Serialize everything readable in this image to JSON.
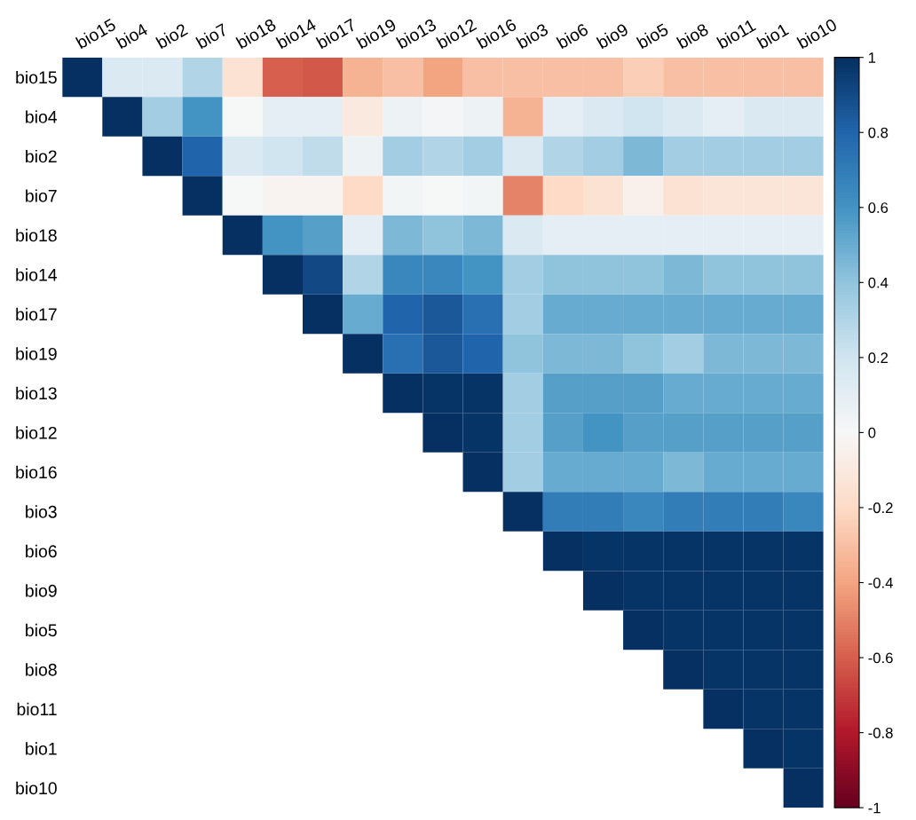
{
  "chart_data": {
    "type": "heatmap",
    "categories": [
      "bio15",
      "bio4",
      "bio2",
      "bio7",
      "bio18",
      "bio14",
      "bio17",
      "bio19",
      "bio13",
      "bio12",
      "bio16",
      "bio3",
      "bio6",
      "bio9",
      "bio5",
      "bio8",
      "bio11",
      "bio1",
      "bio10"
    ],
    "y_categories": [
      "bio15",
      "bio4",
      "bio2",
      "bio7",
      "bio18",
      "bio14",
      "bio17",
      "bio19",
      "bio13",
      "bio12",
      "bio16",
      "bio3",
      "bio6",
      "bio9",
      "bio5",
      "bio8",
      "bio11",
      "bio1",
      "bio10"
    ],
    "cells": [
      [
        1,
        0.15,
        0.15,
        0.3,
        -0.15,
        -0.6,
        -0.62,
        -0.35,
        -0.3,
        -0.4,
        -0.3,
        -0.3,
        -0.3,
        -0.3,
        -0.25,
        -0.3,
        -0.3,
        -0.3,
        -0.3
      ],
      [
        null,
        1,
        0.35,
        0.6,
        0.0,
        0.1,
        0.1,
        -0.1,
        0.05,
        0.02,
        0.05,
        -0.35,
        0.1,
        0.15,
        0.2,
        0.15,
        0.1,
        0.15,
        0.15
      ],
      [
        null,
        null,
        1,
        0.8,
        0.15,
        0.2,
        0.25,
        0.05,
        0.35,
        0.3,
        0.35,
        0.15,
        0.3,
        0.35,
        0.45,
        0.35,
        0.35,
        0.35,
        0.35
      ],
      [
        null,
        null,
        null,
        1,
        0.0,
        -0.03,
        -0.03,
        -0.2,
        0.03,
        0.0,
        0.03,
        -0.5,
        -0.2,
        -0.15,
        -0.05,
        -0.15,
        -0.13,
        -0.13,
        -0.13
      ],
      [
        null,
        null,
        null,
        null,
        1,
        0.6,
        0.55,
        0.1,
        0.45,
        0.4,
        0.45,
        0.15,
        0.1,
        0.1,
        0.1,
        0.1,
        0.1,
        0.1,
        0.1
      ],
      [
        null,
        null,
        null,
        null,
        null,
        1,
        0.9,
        0.3,
        0.65,
        0.65,
        0.6,
        0.35,
        0.4,
        0.4,
        0.4,
        0.45,
        0.4,
        0.4,
        0.4
      ],
      [
        null,
        null,
        null,
        null,
        null,
        null,
        1,
        0.5,
        0.8,
        0.85,
        0.75,
        0.35,
        0.5,
        0.5,
        0.5,
        0.5,
        0.5,
        0.5,
        0.5
      ],
      [
        null,
        null,
        null,
        null,
        null,
        null,
        null,
        1,
        0.75,
        0.85,
        0.8,
        0.4,
        0.45,
        0.45,
        0.4,
        0.35,
        0.45,
        0.45,
        0.45
      ],
      [
        null,
        null,
        null,
        null,
        null,
        null,
        null,
        null,
        1,
        0.98,
        0.98,
        0.35,
        0.55,
        0.55,
        0.55,
        0.5,
        0.5,
        0.5,
        0.5
      ],
      [
        null,
        null,
        null,
        null,
        null,
        null,
        null,
        null,
        null,
        1,
        0.98,
        0.35,
        0.55,
        0.6,
        0.55,
        0.55,
        0.55,
        0.55,
        0.55
      ],
      [
        null,
        null,
        null,
        null,
        null,
        null,
        null,
        null,
        null,
        null,
        1,
        0.35,
        0.5,
        0.5,
        0.5,
        0.45,
        0.5,
        0.5,
        0.5
      ],
      [
        null,
        null,
        null,
        null,
        null,
        null,
        null,
        null,
        null,
        null,
        null,
        1,
        0.7,
        0.7,
        0.65,
        0.7,
        0.7,
        0.7,
        0.65
      ],
      [
        null,
        null,
        null,
        null,
        null,
        null,
        null,
        null,
        null,
        null,
        null,
        null,
        1,
        0.98,
        0.98,
        0.98,
        0.98,
        0.98,
        0.98
      ],
      [
        null,
        null,
        null,
        null,
        null,
        null,
        null,
        null,
        null,
        null,
        null,
        null,
        null,
        1,
        0.98,
        0.98,
        0.98,
        0.98,
        0.98
      ],
      [
        null,
        null,
        null,
        null,
        null,
        null,
        null,
        null,
        null,
        null,
        null,
        null,
        null,
        null,
        1,
        0.98,
        0.98,
        0.98,
        0.98
      ],
      [
        null,
        null,
        null,
        null,
        null,
        null,
        null,
        null,
        null,
        null,
        null,
        null,
        null,
        null,
        null,
        1,
        0.98,
        0.98,
        0.98
      ],
      [
        null,
        null,
        null,
        null,
        null,
        null,
        null,
        null,
        null,
        null,
        null,
        null,
        null,
        null,
        null,
        null,
        1,
        0.98,
        0.98
      ],
      [
        null,
        null,
        null,
        null,
        null,
        null,
        null,
        null,
        null,
        null,
        null,
        null,
        null,
        null,
        null,
        null,
        null,
        1,
        0.98
      ],
      [
        null,
        null,
        null,
        null,
        null,
        null,
        null,
        null,
        null,
        null,
        null,
        null,
        null,
        null,
        null,
        null,
        null,
        null,
        1
      ]
    ],
    "clim": [
      -1,
      1
    ],
    "cticks": [
      -1,
      -0.8,
      -0.6,
      -0.4,
      -0.2,
      0,
      0.2,
      0.4,
      0.6,
      0.8,
      1
    ]
  }
}
